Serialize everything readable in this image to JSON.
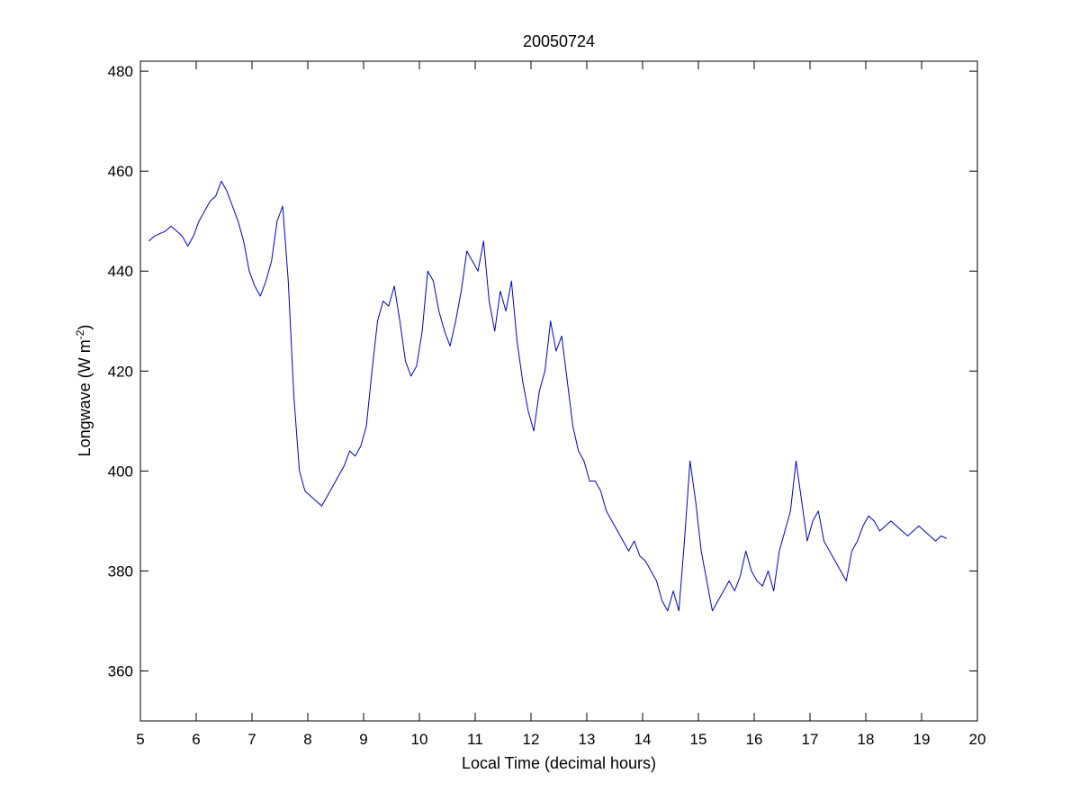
{
  "chart_data": {
    "type": "line",
    "title": "20050724",
    "xlabel": "Local Time (decimal hours)",
    "ylabel_main": "Longwave (W m",
    "ylabel_sup": "-2",
    "ylabel_close": ")",
    "xlim": [
      5,
      20
    ],
    "ylim": [
      350,
      482
    ],
    "xticks": [
      5,
      6,
      7,
      8,
      9,
      10,
      11,
      12,
      13,
      14,
      15,
      16,
      17,
      18,
      19,
      20
    ],
    "yticks": [
      360,
      380,
      400,
      420,
      440,
      460,
      480
    ],
    "grid": false,
    "line_color": "#0000c8",
    "series": [
      {
        "x": [
          5.15,
          5.25,
          5.35,
          5.45,
          5.55,
          5.65,
          5.75,
          5.85,
          5.95,
          6.05,
          6.15,
          6.25,
          6.35,
          6.45,
          6.55,
          6.65,
          6.75,
          6.85,
          6.95,
          7.05,
          7.15,
          7.25,
          7.35,
          7.45,
          7.55,
          7.65,
          7.75,
          7.85,
          7.95,
          8.05,
          8.15,
          8.25,
          8.35,
          8.45,
          8.55,
          8.65,
          8.75,
          8.85,
          8.95,
          9.05,
          9.15,
          9.25,
          9.35,
          9.45,
          9.55,
          9.65,
          9.75,
          9.85,
          9.95,
          10.05,
          10.15,
          10.25,
          10.35,
          10.45,
          10.55,
          10.65,
          10.75,
          10.85,
          10.95,
          11.05,
          11.15,
          11.25,
          11.35,
          11.45,
          11.55,
          11.65,
          11.75,
          11.85,
          11.95,
          12.05,
          12.15,
          12.25,
          12.35,
          12.45,
          12.55,
          12.65,
          12.75,
          12.85,
          12.95,
          13.05,
          13.15,
          13.25,
          13.35,
          13.45,
          13.55,
          13.65,
          13.75,
          13.85,
          13.95,
          14.05,
          14.15,
          14.25,
          14.35,
          14.45,
          14.55,
          14.65,
          14.75,
          14.85,
          14.95,
          15.05,
          15.15,
          15.25,
          15.35,
          15.45,
          15.55,
          15.65,
          15.75,
          15.85,
          15.95,
          16.05,
          16.15,
          16.25,
          16.35,
          16.45,
          16.55,
          16.65,
          16.75,
          16.85,
          16.95,
          17.05,
          17.15,
          17.25,
          17.35,
          17.45,
          17.55,
          17.65,
          17.75,
          17.85,
          17.95,
          18.05,
          18.15,
          18.25,
          18.35,
          18.45,
          18.55,
          18.65,
          18.75,
          18.85,
          18.95,
          19.05,
          19.15,
          19.25,
          19.35,
          19.45
        ],
        "values": [
          446,
          447,
          447.5,
          448,
          449,
          448,
          447,
          445,
          447,
          450,
          452,
          454,
          455,
          458,
          456,
          453,
          450,
          446,
          440,
          437,
          435,
          438,
          442,
          450,
          453,
          438,
          415,
          400,
          396,
          395,
          394,
          393,
          395,
          397,
          399,
          401,
          404,
          403,
          405,
          409,
          420,
          430,
          434,
          433,
          437,
          430,
          422,
          419,
          421,
          428,
          440,
          438,
          432,
          428,
          425,
          430,
          436,
          444,
          442,
          440,
          446,
          434,
          428,
          436,
          432,
          438,
          426,
          418,
          412,
          408,
          416,
          420,
          430,
          424,
          427,
          418,
          409,
          404,
          402,
          398,
          398,
          396,
          392,
          390,
          388,
          386,
          384,
          386,
          383,
          382,
          380,
          378,
          374,
          372,
          376,
          372,
          386,
          402,
          394,
          384,
          378,
          372,
          374,
          376,
          378,
          376,
          379,
          384,
          380,
          378,
          377,
          380,
          376,
          384,
          388,
          392,
          402,
          394,
          386,
          390,
          392,
          386,
          384,
          382,
          380,
          378,
          384,
          386,
          389,
          391,
          390,
          388,
          389,
          390,
          389,
          388,
          387,
          388,
          389,
          388,
          387,
          386,
          387,
          386.5
        ]
      }
    ]
  }
}
